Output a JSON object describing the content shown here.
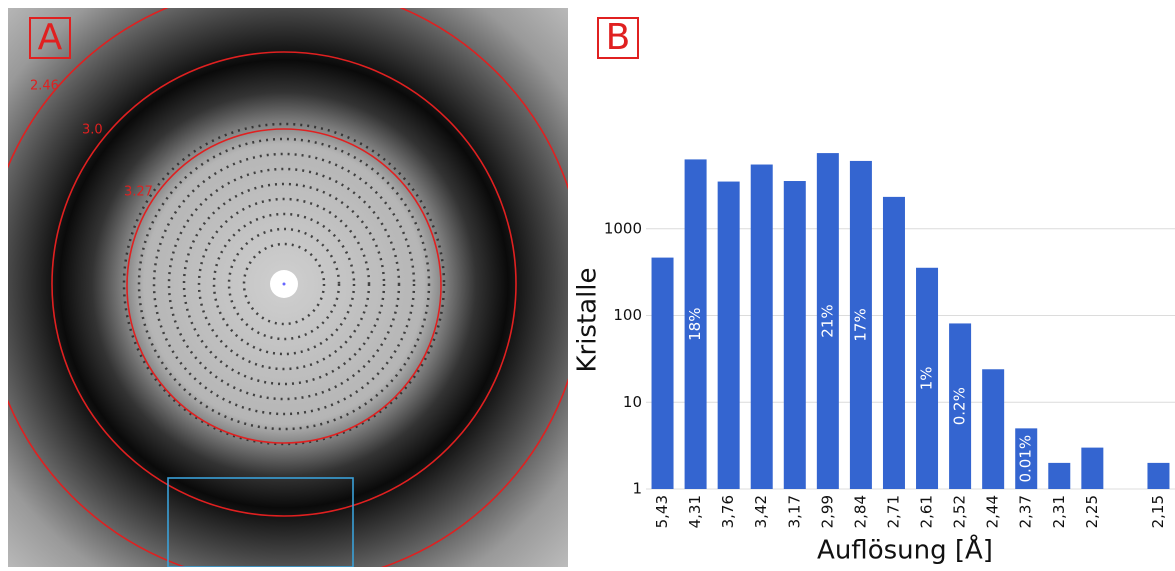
{
  "panel_a": {
    "label": "A",
    "ring_labels": [
      "2.46",
      "3.0",
      "3.27"
    ]
  },
  "chart_data": {
    "type": "bar",
    "panel_label": "B",
    "categories": [
      "5,43",
      "4,31",
      "3,76",
      "3,42",
      "3,17",
      "2,99",
      "2,84",
      "2,71",
      "2,61",
      "2,52",
      "2,44",
      "2,37",
      "2,31",
      "2,25",
      null,
      "2,15"
    ],
    "values": [
      465,
      6300,
      3500,
      5500,
      3550,
      7450,
      6050,
      2330,
      355,
      81,
      24,
      5,
      2,
      3,
      null,
      2
    ],
    "percent_labels": [
      null,
      "18%",
      null,
      null,
      null,
      "21%",
      "17%",
      null,
      "1%",
      "0.2%",
      null,
      "0.01%",
      null,
      null,
      null,
      null
    ],
    "color": "#3465d0",
    "x_label": "Auflösung [Å]",
    "y_label": "Kristalle",
    "y_scale": "log",
    "ylim": [
      1,
      10000
    ],
    "yticks": [
      1,
      10,
      100,
      1000
    ],
    "grid": true
  }
}
